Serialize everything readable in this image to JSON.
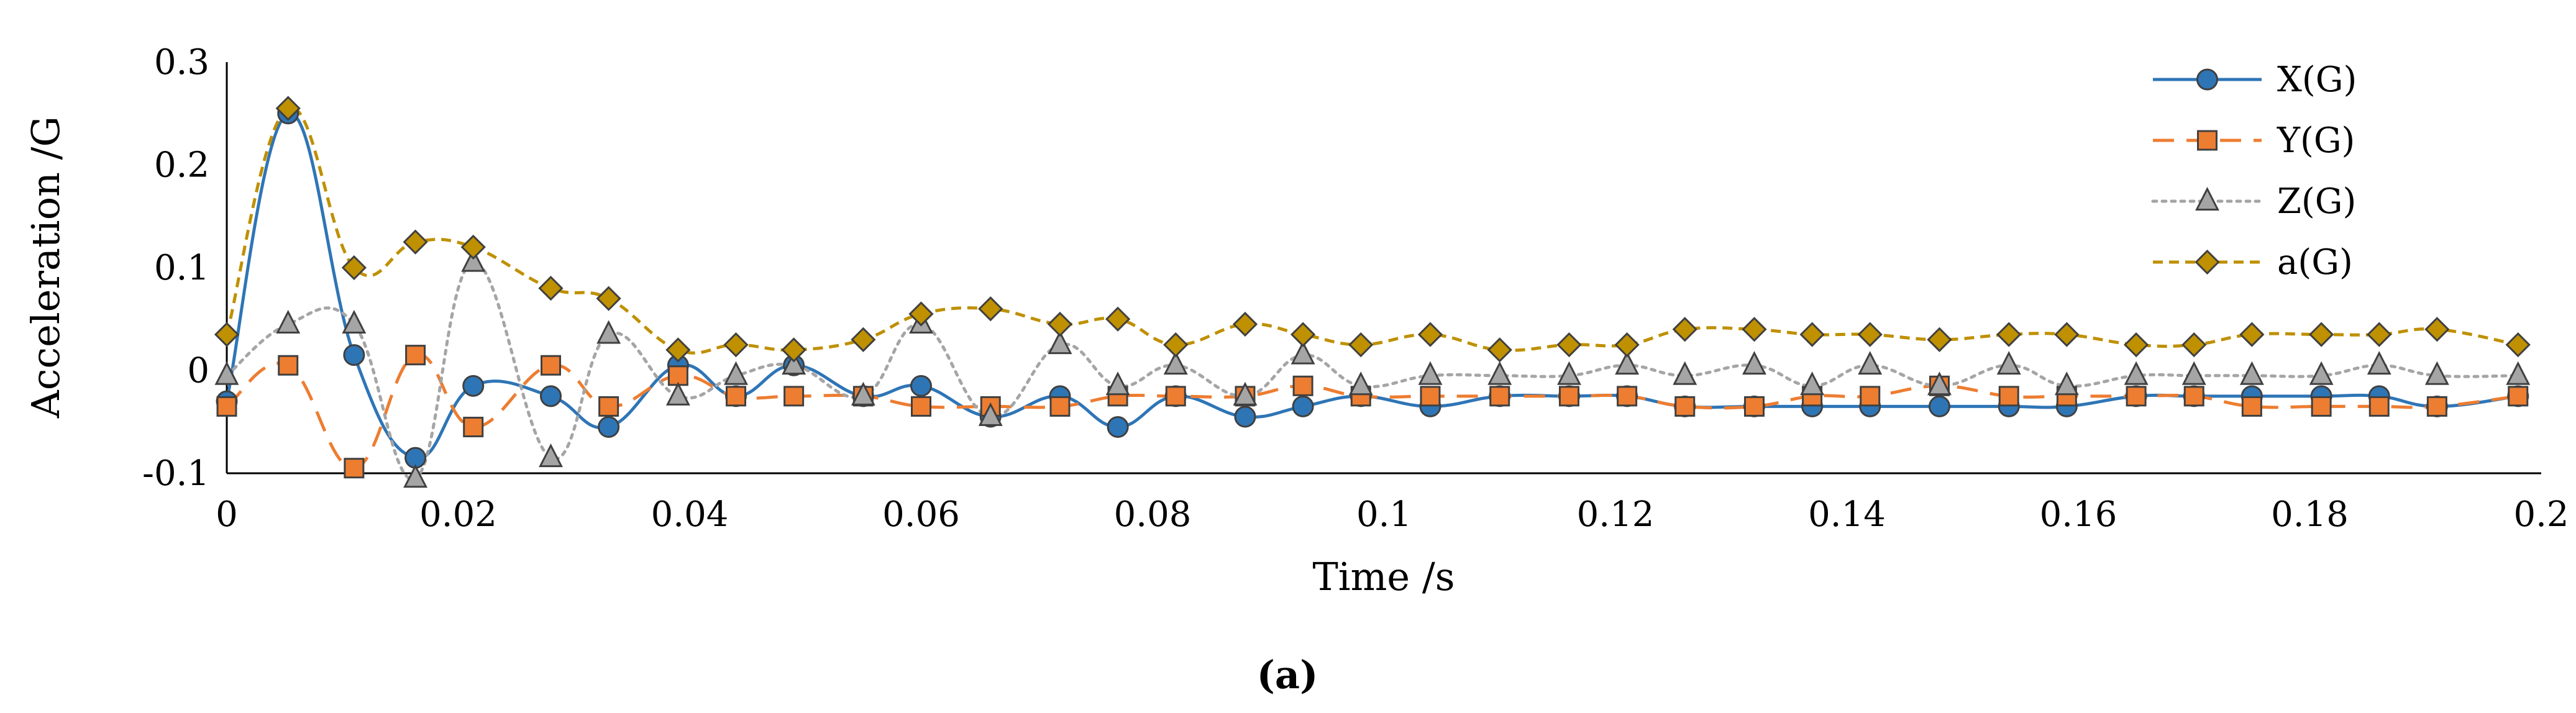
{
  "chart_data": {
    "type": "line",
    "title": "",
    "xlabel": "Time /s",
    "ylabel": "Acceleration /G",
    "xlim": [
      0,
      0.2
    ],
    "ylim": [
      -0.1,
      0.3
    ],
    "x_ticks": [
      0,
      0.02,
      0.04,
      0.06,
      0.08,
      0.1,
      0.12,
      0.14,
      0.16,
      0.18,
      0.2
    ],
    "x_tick_labels": [
      "0",
      "0.02",
      "0.04",
      "0.06",
      "0.08",
      "0.1",
      "0.12",
      "0.14",
      "0.16",
      "0.18",
      "0.2"
    ],
    "y_ticks": [
      -0.1,
      0,
      0.1,
      0.2,
      0.3
    ],
    "y_tick_labels": [
      "-0.1",
      "0",
      "0.1",
      "0.2",
      "0.3"
    ],
    "grid": false,
    "legend_position": "top-right",
    "x": [
      0,
      0.0053,
      0.011,
      0.0163,
      0.0213,
      0.028,
      0.033,
      0.039,
      0.044,
      0.049,
      0.055,
      0.06,
      0.066,
      0.072,
      0.077,
      0.082,
      0.088,
      0.093,
      0.098,
      0.104,
      0.11,
      0.116,
      0.121,
      0.126,
      0.132,
      0.137,
      0.142,
      0.148,
      0.154,
      0.159,
      0.165,
      0.17,
      0.175,
      0.181,
      0.186,
      0.191,
      0.198
    ],
    "series": [
      {
        "name": "X(G)",
        "color": "#2E75B6",
        "marker": "circle",
        "line_style": "solid",
        "smooth": true,
        "values": [
          -0.03,
          0.25,
          0.015,
          -0.085,
          -0.015,
          -0.025,
          -0.055,
          0.005,
          -0.025,
          0.005,
          -0.025,
          -0.015,
          -0.045,
          -0.025,
          -0.055,
          -0.025,
          -0.045,
          -0.035,
          -0.025,
          -0.035,
          -0.025,
          -0.025,
          -0.025,
          -0.035,
          -0.035,
          -0.035,
          -0.035,
          -0.035,
          -0.035,
          -0.035,
          -0.025,
          -0.025,
          -0.025,
          -0.025,
          -0.025,
          -0.035,
          -0.025
        ]
      },
      {
        "name": "Y(G)",
        "color": "#ED7D31",
        "marker": "square",
        "line_style": "long-dash",
        "smooth": true,
        "values": [
          -0.035,
          0.005,
          -0.095,
          0.015,
          -0.055,
          0.005,
          -0.035,
          -0.005,
          -0.025,
          -0.025,
          -0.025,
          -0.035,
          -0.035,
          -0.035,
          -0.025,
          -0.025,
          -0.025,
          -0.015,
          -0.025,
          -0.025,
          -0.025,
          -0.025,
          -0.025,
          -0.035,
          -0.035,
          -0.025,
          -0.025,
          -0.015,
          -0.025,
          -0.025,
          -0.025,
          -0.025,
          -0.035,
          -0.035,
          -0.035,
          -0.035,
          -0.025
        ]
      },
      {
        "name": "Z(G)",
        "color": "#A5A5A5",
        "marker": "triangle",
        "line_style": "dotted",
        "smooth": true,
        "values": [
          -0.005,
          0.045,
          0.045,
          -0.105,
          0.105,
          -0.085,
          0.035,
          -0.025,
          -0.005,
          0.005,
          -0.025,
          0.045,
          -0.045,
          0.025,
          -0.015,
          0.005,
          -0.025,
          0.015,
          -0.015,
          -0.005,
          -0.005,
          -0.005,
          0.005,
          -0.005,
          0.005,
          -0.015,
          0.005,
          -0.015,
          0.005,
          -0.015,
          -0.005,
          -0.005,
          -0.005,
          -0.005,
          0.005,
          -0.005,
          -0.005
        ]
      },
      {
        "name": "a(G)",
        "color": "#BF9000",
        "marker": "diamond",
        "line_style": "dashed",
        "smooth": true,
        "values": [
          0.035,
          0.255,
          0.1,
          0.125,
          0.12,
          0.08,
          0.07,
          0.02,
          0.025,
          0.02,
          0.03,
          0.055,
          0.06,
          0.045,
          0.05,
          0.025,
          0.045,
          0.035,
          0.025,
          0.035,
          0.02,
          0.025,
          0.025,
          0.04,
          0.04,
          0.035,
          0.035,
          0.03,
          0.035,
          0.035,
          0.025,
          0.025,
          0.035,
          0.035,
          0.035,
          0.04,
          0.025
        ]
      }
    ]
  },
  "caption": "(a)"
}
